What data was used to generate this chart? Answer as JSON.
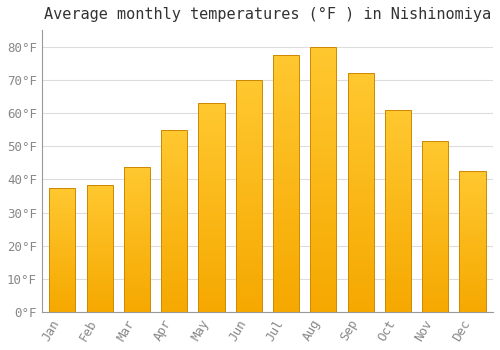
{
  "title": "Average monthly temperatures (°F ) in Nishinomiya",
  "months": [
    "Jan",
    "Feb",
    "Mar",
    "Apr",
    "May",
    "Jun",
    "Jul",
    "Aug",
    "Sep",
    "Oct",
    "Nov",
    "Dec"
  ],
  "values": [
    37.5,
    38.3,
    43.7,
    55.0,
    63.1,
    70.0,
    77.5,
    80.0,
    72.0,
    61.0,
    51.5,
    42.5
  ],
  "bar_color_top": "#FFC020",
  "bar_color_bottom": "#F5A800",
  "bar_edge_color": "#CC8800",
  "background_color": "#FFFFFF",
  "grid_color": "#DDDDDD",
  "yticks": [
    0,
    10,
    20,
    30,
    40,
    50,
    60,
    70,
    80
  ],
  "ylim": [
    0,
    85
  ],
  "title_fontsize": 11,
  "tick_fontsize": 9,
  "font_family": "monospace",
  "tick_color": "#888888",
  "title_color": "#333333",
  "spine_color": "#999999"
}
